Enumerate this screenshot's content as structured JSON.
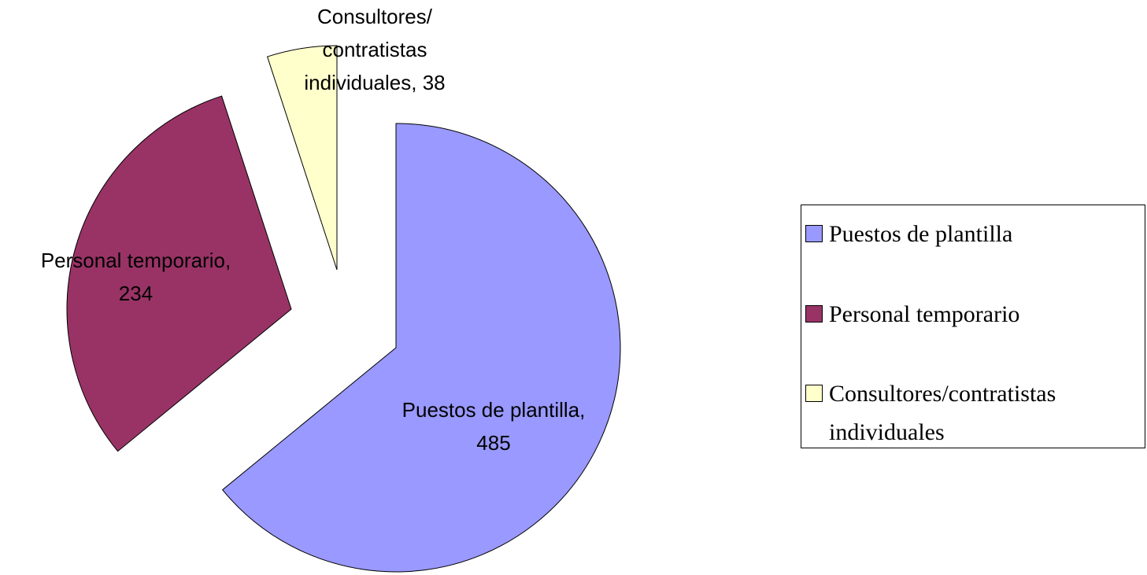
{
  "chart_data": {
    "type": "pie",
    "categories": [
      "Puestos de plantilla",
      "Personal temporario",
      "Consultores/contratistas individuales"
    ],
    "values": [
      485,
      234,
      38
    ],
    "value_labels": [
      "Puestos de plantilla,\n485",
      "Personal temporario,\n234",
      "Consultores/\ncontratistas\nindividuales, 38"
    ],
    "colors": [
      "#9999ff",
      "#993366",
      "#ffffcc"
    ],
    "legend": "right"
  }
}
